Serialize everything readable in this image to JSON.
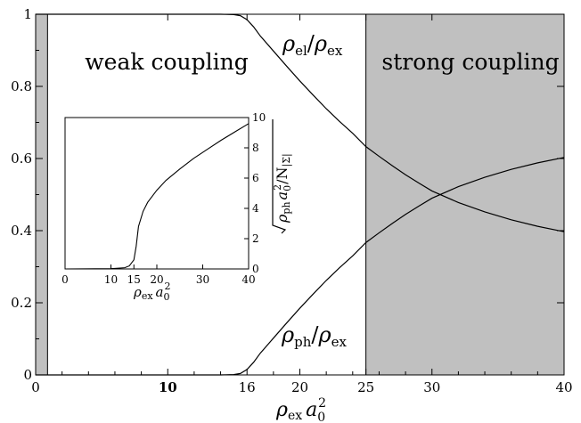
{
  "chart_data": [
    {
      "type": "line",
      "title": "",
      "xlabel": "ρex a0²",
      "ylabel": "",
      "xlim": [
        0,
        40
      ],
      "ylim": [
        0,
        1
      ],
      "x_ticks": [
        0,
        10,
        16,
        20,
        25,
        30,
        40
      ],
      "x_tick_labels": [
        "0",
        "10",
        "16",
        "20",
        "25",
        "30",
        "40"
      ],
      "y_ticks": [
        0,
        0.2,
        0.4,
        0.6,
        0.8,
        1
      ],
      "y_tick_labels": [
        "0",
        "0.2",
        "0.4",
        "0.6",
        "0.8",
        "1"
      ],
      "grid": false,
      "shaded_regions": [
        {
          "x_from": 0,
          "x_to": 0.9,
          "color": "#c0c0c0"
        },
        {
          "x_from": 25,
          "x_to": 40,
          "color": "#c0c0c0"
        }
      ],
      "region_labels": [
        "weak coupling",
        "strong coupling"
      ],
      "vertical_line_x": 25,
      "series": [
        {
          "name": "ρel/ρex",
          "x": [
            0,
            14,
            15,
            15.5,
            16,
            16.5,
            17,
            18,
            19,
            20,
            21,
            22,
            23,
            24,
            25,
            26,
            27,
            28,
            29,
            30,
            32,
            34,
            36,
            38,
            40
          ],
          "y": [
            1,
            1,
            0.999,
            0.996,
            0.985,
            0.965,
            0.94,
            0.898,
            0.856,
            0.815,
            0.776,
            0.738,
            0.703,
            0.67,
            0.633,
            0.606,
            0.58,
            0.555,
            0.532,
            0.51,
            0.478,
            0.452,
            0.43,
            0.412,
            0.397
          ]
        },
        {
          "name": "ρph/ρex",
          "x": [
            0,
            14,
            15,
            15.5,
            16,
            16.5,
            17,
            18,
            19,
            20,
            21,
            22,
            23,
            24,
            25,
            26,
            27,
            28,
            29,
            30,
            32,
            34,
            36,
            38,
            40
          ],
          "y": [
            0,
            0,
            0.001,
            0.004,
            0.015,
            0.035,
            0.06,
            0.102,
            0.144,
            0.185,
            0.224,
            0.262,
            0.297,
            0.33,
            0.367,
            0.394,
            0.42,
            0.445,
            0.468,
            0.49,
            0.522,
            0.548,
            0.57,
            0.588,
            0.603
          ]
        }
      ]
    },
    {
      "type": "line",
      "title": "",
      "xlabel": "ρex a0²",
      "ylabel": "√(ρph a0²)/N|Σ|",
      "xlim": [
        0,
        40
      ],
      "ylim": [
        0,
        10
      ],
      "x_ticks": [
        0,
        10,
        15,
        20,
        30,
        40
      ],
      "x_tick_labels": [
        "0",
        "10",
        "15",
        "20",
        "30",
        "40"
      ],
      "y_ticks": [
        0,
        2,
        4,
        6,
        8,
        10
      ],
      "y_tick_labels": [
        "0",
        "2",
        "4",
        "6",
        "8",
        "10"
      ],
      "grid": false,
      "series": [
        {
          "name": "",
          "x": [
            0,
            10,
            13,
            14,
            15,
            15.5,
            16,
            17,
            18,
            20,
            22,
            25,
            28,
            31,
            34,
            37,
            40
          ],
          "y": [
            0,
            0.02,
            0.08,
            0.2,
            0.6,
            1.5,
            2.8,
            3.8,
            4.4,
            5.2,
            5.85,
            6.6,
            7.3,
            7.9,
            8.5,
            9.05,
            9.6
          ]
        }
      ]
    }
  ],
  "labels": {
    "weak": "weak coupling",
    "strong": "strong coupling",
    "rho_el": "ρ",
    "rho_el_sub": "el",
    "rho_ph": "ρ",
    "rho_ph_sub": "ph",
    "slash": "/",
    "rho_ex": "ρ",
    "rho_ex_sub": "ex",
    "xlabel_rho": "ρ",
    "xlabel_sub": "ex",
    "xlabel_a": "a",
    "xlabel_a_sub": "0",
    "xlabel_sup": "2",
    "inset_ylabel_text": "ρ",
    "inset_ylabel_sub": "ph",
    "inset_ylabel_a": "a",
    "inset_ylabel_a_sub": "0",
    "inset_ylabel_sup": "2",
    "inset_ylabel_rest": "/N",
    "inset_ylabel_sigma": "|Σ|"
  },
  "colors": {
    "shade": "#c0c0c0",
    "line": "#000000",
    "background": "#ffffff"
  }
}
